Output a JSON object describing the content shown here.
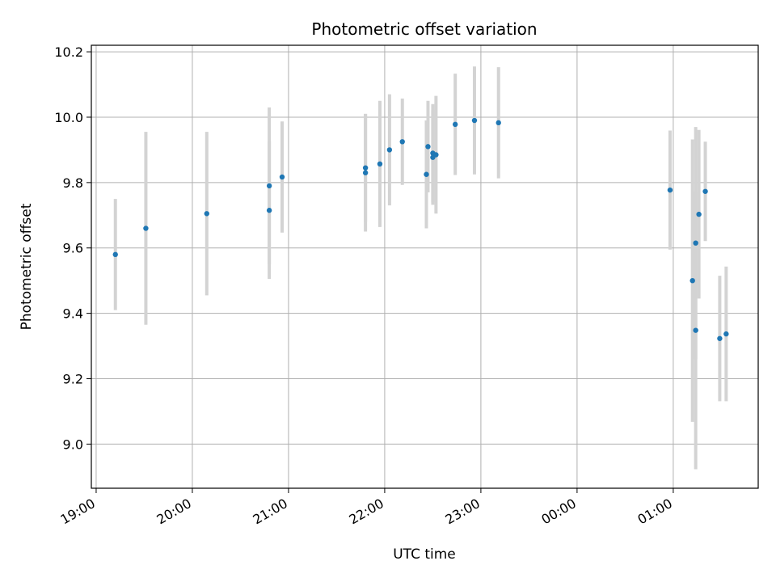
{
  "chart_data": {
    "type": "scatter",
    "title": "Photometric offset variation",
    "xlabel": "UTC time",
    "ylabel": "Photometric offset",
    "grid": true,
    "x_axis": {
      "type": "datetime",
      "range": [
        "18:57",
        "01:53"
      ],
      "ticks": [
        "19:00",
        "20:00",
        "21:00",
        "22:00",
        "23:00",
        "00:00",
        "01:00"
      ]
    },
    "y_axis": {
      "range": [
        8.865,
        10.22
      ],
      "ticks": [
        9.0,
        9.2,
        9.4,
        9.6,
        9.8,
        10.0,
        10.2
      ],
      "tick_labels": [
        "9.0",
        "9.2",
        "9.4",
        "9.6",
        "9.8",
        "10.0",
        "10.2"
      ]
    },
    "colors": {
      "points": "#1f77b4",
      "errorbars": "#d3d3d3",
      "grid": "#b0b0b0"
    },
    "series": [
      {
        "points": [
          {
            "x": "19:12",
            "y": 9.58,
            "err": 0.17
          },
          {
            "x": "19:31",
            "y": 9.66,
            "err": 0.295
          },
          {
            "x": "20:09",
            "y": 9.705,
            "err": 0.25
          },
          {
            "x": "20:48",
            "y": 9.79,
            "err": 0.24
          },
          {
            "x": "20:48",
            "y": 9.715,
            "err": 0.21
          },
          {
            "x": "20:56",
            "y": 9.817,
            "err": 0.17
          },
          {
            "x": "21:48",
            "y": 9.845,
            "err": 0.165
          },
          {
            "x": "21:48",
            "y": 9.83,
            "err": 0.18
          },
          {
            "x": "21:57",
            "y": 9.857,
            "err": 0.193
          },
          {
            "x": "22:03",
            "y": 9.9,
            "err": 0.17
          },
          {
            "x": "22:11",
            "y": 9.925,
            "err": 0.132
          },
          {
            "x": "22:26",
            "y": 9.825,
            "err": 0.165
          },
          {
            "x": "22:27",
            "y": 9.91,
            "err": 0.14
          },
          {
            "x": "22:30",
            "y": 9.89,
            "err": 0.15
          },
          {
            "x": "22:30",
            "y": 9.877,
            "err": 0.145
          },
          {
            "x": "22:32",
            "y": 9.885,
            "err": 0.18
          },
          {
            "x": "22:44",
            "y": 9.978,
            "err": 0.155
          },
          {
            "x": "22:56",
            "y": 9.99,
            "err": 0.165
          },
          {
            "x": "23:11",
            "y": 9.983,
            "err": 0.17
          },
          {
            "x": "00:58",
            "y": 9.777,
            "err": 0.182
          },
          {
            "x": "01:12",
            "y": 9.5,
            "err": 0.432
          },
          {
            "x": "01:14",
            "y": 9.348,
            "err": 0.425
          },
          {
            "x": "01:14",
            "y": 9.615,
            "err": 0.355
          },
          {
            "x": "01:16",
            "y": 9.703,
            "err": 0.258
          },
          {
            "x": "01:20",
            "y": 9.773,
            "err": 0.152
          },
          {
            "x": "01:29",
            "y": 9.323,
            "err": 0.192
          },
          {
            "x": "01:33",
            "y": 9.337,
            "err": 0.206
          }
        ]
      }
    ]
  }
}
